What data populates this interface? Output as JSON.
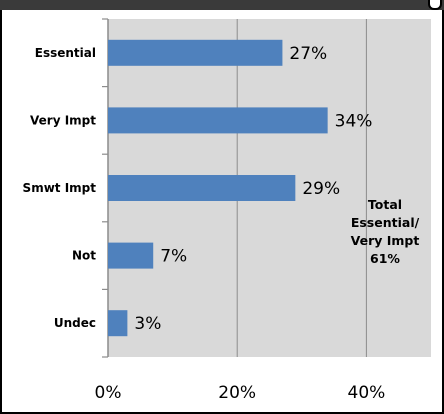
{
  "chart_data": {
    "type": "bar",
    "orientation": "horizontal",
    "categories": [
      "Essential",
      "Very Impt",
      "Smwt Impt",
      "Not",
      "Undec"
    ],
    "values": [
      27,
      34,
      29,
      7,
      3
    ],
    "value_labels": [
      "27%",
      "34%",
      "29%",
      "7%",
      "3%"
    ],
    "xlim": [
      0,
      50
    ],
    "xticks": [
      0,
      20,
      40
    ],
    "xtick_labels": [
      "0%",
      "20%",
      "40%"
    ],
    "grid": true,
    "bar_color": "#4f81bd",
    "plot_background": "#d9d9d9",
    "annotation": [
      "Total",
      "Essential/",
      "Very Impt",
      "61%"
    ]
  }
}
